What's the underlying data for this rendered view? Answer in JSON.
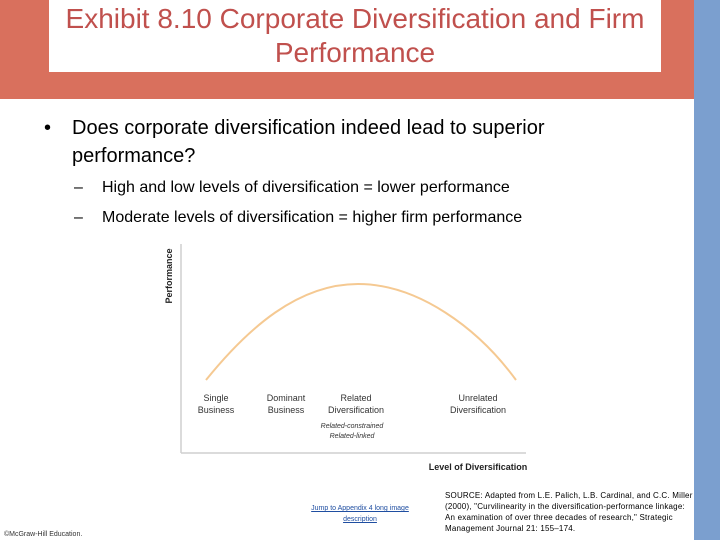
{
  "slide": {
    "title": "Exhibit 8.10 Corporate Diversification and Firm Performance",
    "bullet": "Does corporate diversification indeed lead to superior performance?",
    "sub_bullets": [
      "High and low levels of diversification = lower performance",
      "Moderate levels of diversification = higher firm performance"
    ],
    "link_text": "Jump to Appendix 4 long image description",
    "copyright": "©McGraw-Hill Education.",
    "source": "SOURCE: Adapted from L.E. Palich, L.B. Cardinal, and C.C. Miller (2000), \"Curvilinearity in the diversification-performance linkage: An examination of over three decades of research,\" Strategic Management Journal 21: 155–174.",
    "colors": {
      "header": "#d9705d",
      "title": "#c0504d",
      "side_band": "#7b9fcf",
      "curve": "#f5c992"
    }
  },
  "chart_data": {
    "type": "line",
    "xlabel": "Level of Diversification",
    "ylabel": "Performance",
    "categories": [
      {
        "label": [
          "Single",
          "Business"
        ],
        "sub": []
      },
      {
        "label": [
          "Dominant",
          "Business"
        ],
        "sub": []
      },
      {
        "label": [
          "Related",
          "Diversification"
        ],
        "sub": [
          "Related-constrained",
          "Related-linked"
        ]
      },
      {
        "label": [
          "Unrelated",
          "Diversification"
        ],
        "sub": []
      }
    ],
    "curve": "inverted-U",
    "grid": false,
    "legend": "none"
  }
}
